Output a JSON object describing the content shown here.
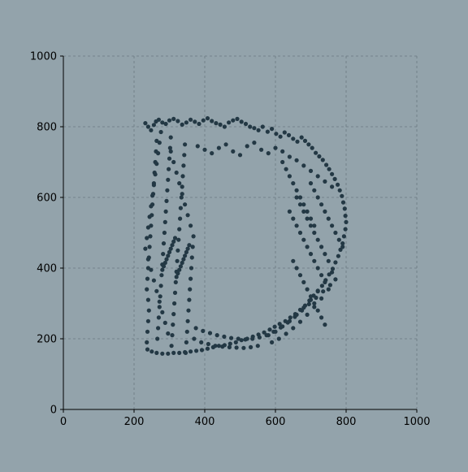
{
  "colors": {
    "background": "#93a3ab",
    "points": "#233844",
    "grid": "#6b7a82",
    "axis": "#000000"
  },
  "chart_data": {
    "type": "scatter",
    "title": "",
    "xlabel": "",
    "ylabel": "",
    "xlim": [
      0,
      1000
    ],
    "ylim": [
      0,
      1000
    ],
    "grid": true,
    "x_ticks": [
      "0",
      "200",
      "400",
      "600",
      "800",
      "1000"
    ],
    "y_ticks": [
      "0",
      "200",
      "400",
      "600",
      "800",
      "1000"
    ],
    "shape": "letter D",
    "series": [
      {
        "name": "points",
        "color": "#233844",
        "x": [
          232,
          240,
          248,
          256,
          262,
          270,
          280,
          290,
          300,
          312,
          324,
          336,
          348,
          360,
          372,
          384,
          396,
          408,
          420,
          432,
          444,
          456,
          468,
          480,
          492,
          504,
          516,
          528,
          540,
          552,
          564,
          578,
          590,
          602,
          614,
          626,
          638,
          650,
          662,
          674,
          684,
          694,
          704,
          714,
          724,
          734,
          744,
          752,
          760,
          768,
          776,
          782,
          788,
          792,
          796,
          798,
          800,
          798,
          794,
          790,
          784,
          778,
          770,
          762,
          752,
          742,
          732,
          720,
          708,
          696,
          684,
          670,
          656,
          642,
          628,
          612,
          598,
          584,
          568,
          552,
          536,
          520,
          504,
          488,
          472,
          456,
          440,
          424,
          408,
          392,
          376,
          360,
          344,
          328,
          312,
          296,
          280,
          264,
          250,
          238,
          236,
          238,
          240,
          242,
          240,
          236,
          238,
          240,
          242,
          244,
          246,
          248,
          250,
          252,
          254,
          256,
          258,
          260,
          262,
          264,
          266,
          268,
          270,
          272,
          274,
          276,
          278,
          280,
          282,
          284,
          286,
          288,
          290,
          292,
          294,
          296,
          298,
          300,
          302,
          304,
          306,
          308,
          310,
          312,
          314,
          316,
          318,
          320,
          322,
          324,
          326,
          328,
          330,
          332,
          334,
          336,
          338,
          340,
          342,
          344,
          346,
          348,
          350,
          352,
          354,
          356,
          358,
          360,
          362,
          364,
          366,
          368,
          360,
          352,
          344,
          336,
          328,
          320,
          312,
          304,
          296,
          288,
          280,
          272,
          264,
          256,
          248,
          240,
          232,
          236,
          240,
          244,
          248,
          252,
          256,
          260,
          264,
          268,
          272,
          276,
          280,
          284,
          288,
          292,
          296,
          300,
          304,
          308,
          312,
          316,
          320,
          324,
          328,
          332,
          336,
          340,
          344,
          348,
          352,
          356,
          380,
          400,
          420,
          440,
          460,
          480,
          500,
          520,
          540,
          560,
          580,
          600,
          620,
          640,
          660,
          680,
          700,
          720,
          740,
          760,
          700,
          710,
          720,
          730,
          740,
          750,
          760,
          770,
          780,
          790,
          660,
          670,
          680,
          690,
          700,
          710,
          720,
          730,
          740,
          750,
          650,
          660,
          670,
          680,
          690,
          700,
          710,
          720,
          730,
          740,
          370,
          390,
          410,
          430,
          450,
          470,
          490,
          510,
          530,
          550,
          375,
          395,
          415,
          435,
          455,
          475,
          495,
          515,
          535,
          555,
          575,
          595,
          615,
          635,
          655,
          675,
          695,
          715,
          735,
          755,
          640,
          650,
          660,
          670,
          680,
          690,
          700,
          710,
          720,
          730,
          620,
          630,
          640,
          650,
          660,
          670,
          680,
          690,
          700,
          710,
          580,
          600,
          620,
          640,
          660,
          680,
          700,
          720,
          740,
          760,
          590,
          610,
          630,
          650,
          670,
          690,
          710,
          730,
          750,
          770
        ],
        "y": [
          810,
          800,
          790,
          805,
          815,
          820,
          812,
          808,
          818,
          822,
          816,
          806,
          812,
          820,
          814,
          808,
          818,
          824,
          816,
          810,
          806,
          800,
          812,
          818,
          822,
          814,
          808,
          800,
          796,
          790,
          800,
          786,
          794,
          780,
          772,
          784,
          776,
          766,
          758,
          770,
          760,
          750,
          740,
          726,
          716,
          706,
          692,
          680,
          666,
          652,
          636,
          620,
          604,
          586,
          568,
          548,
          530,
          510,
          490,
          470,
          452,
          434,
          416,
          398,
          382,
          366,
          350,
          336,
          322,
          308,
          294,
          282,
          270,
          260,
          250,
          242,
          234,
          226,
          218,
          212,
          206,
          200,
          196,
          190,
          186,
          182,
          180,
          176,
          172,
          168,
          166,
          164,
          162,
          160,
          160,
          158,
          158,
          160,
          164,
          170,
          190,
          220,
          250,
          280,
          310,
          340,
          370,
          400,
          430,
          460,
          490,
          520,
          550,
          580,
          610,
          640,
          670,
          700,
          730,
          760,
          200,
          230,
          260,
          290,
          320,
          350,
          380,
          410,
          440,
          470,
          500,
          530,
          560,
          590,
          620,
          650,
          680,
          710,
          740,
          770,
          180,
          210,
          240,
          270,
          300,
          330,
          360,
          390,
          420,
          450,
          480,
          510,
          540,
          570,
          600,
          630,
          660,
          690,
          720,
          750,
          160,
          190,
          220,
          250,
          280,
          310,
          340,
          370,
          400,
          430,
          460,
          490,
          520,
          550,
          580,
          610,
          640,
          670,
          700,
          730,
          215,
          245,
          275,
          305,
          335,
          365,
          395,
          425,
          455,
          485,
          515,
          545,
          575,
          605,
          635,
          665,
          695,
          725,
          755,
          785,
          395,
          405,
          415,
          425,
          435,
          445,
          455,
          465,
          475,
          485,
          375,
          385,
          395,
          405,
          415,
          425,
          435,
          445,
          455,
          465,
          745,
          735,
          725,
          740,
          750,
          730,
          720,
          745,
          755,
          735,
          725,
          740,
          730,
          715,
          705,
          690,
          675,
          660,
          645,
          630,
          640,
          620,
          600,
          580,
          560,
          540,
          520,
          500,
          480,
          460,
          600,
          580,
          560,
          540,
          520,
          500,
          480,
          460,
          440,
          420,
          420,
          400,
          380,
          360,
          340,
          320,
          300,
          280,
          260,
          240,
          200,
          190,
          185,
          180,
          178,
          176,
          175,
          174,
          176,
          180,
          230,
          222,
          216,
          210,
          206,
          202,
          200,
          198,
          200,
          204,
          210,
          220,
          232,
          246,
          262,
          280,
          298,
          316,
          334,
          352,
          560,
          540,
          520,
          500,
          480,
          460,
          440,
          420,
          400,
          380,
          700,
          680,
          660,
          640,
          620,
          600,
          580,
          560,
          540,
          520,
          210,
          220,
          235,
          250,
          268,
          288,
          310,
          334,
          360,
          388,
          190,
          200,
          214,
          230,
          248,
          268,
          290,
          314,
          340,
          368
        ]
      }
    ]
  }
}
